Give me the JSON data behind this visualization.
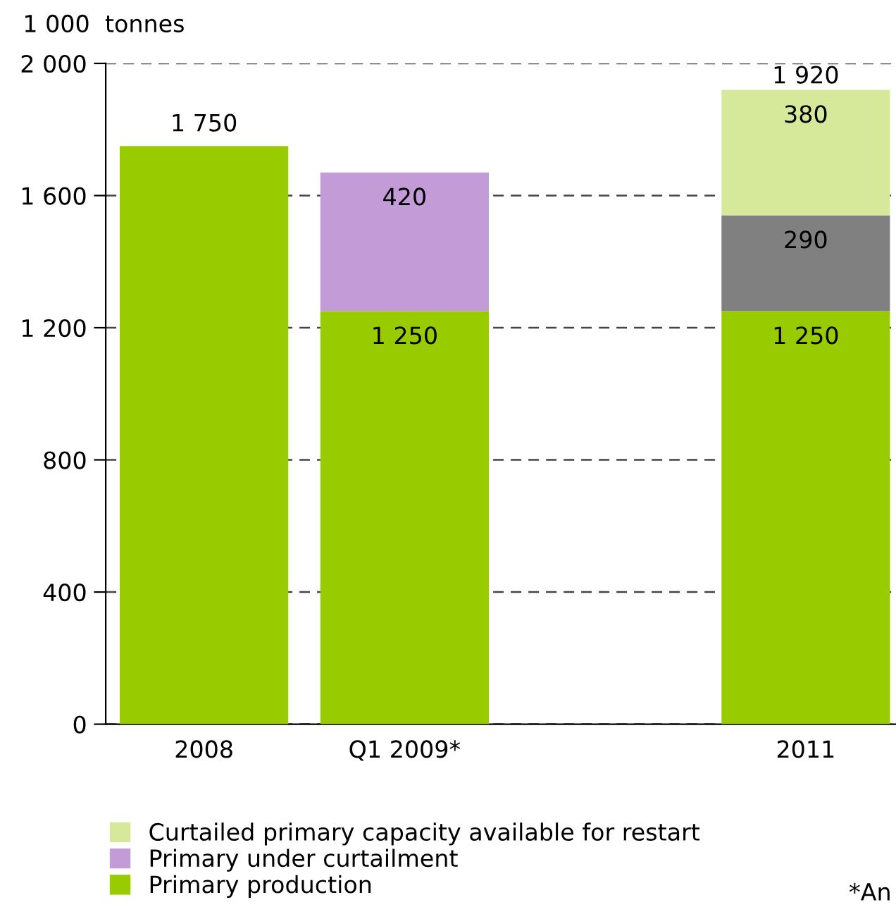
{
  "chart_data": {
    "type": "bar",
    "stacked": true,
    "ylabel": "1 000  tonnes",
    "categories": [
      "2008",
      "Q1 2009*",
      null,
      "2011"
    ],
    "series": [
      {
        "name": "Primary production",
        "color": "#99cc00",
        "values": [
          1750,
          1250,
          null,
          1250
        ],
        "value_labels": [
          "1 750",
          "1 250",
          null,
          "1 250"
        ]
      },
      {
        "name": "Primary under curtailment",
        "color": "#c39bd6",
        "values": [
          null,
          420,
          null,
          null
        ],
        "value_labels": [
          null,
          "420",
          null,
          null
        ]
      },
      {
        "color": "#808080",
        "values": [
          null,
          null,
          null,
          290
        ],
        "value_labels": [
          null,
          null,
          null,
          "290"
        ]
      },
      {
        "name": "Curtailed primary capacity available for restart",
        "color": "#d6e99b",
        "values": [
          null,
          null,
          null,
          380
        ],
        "value_labels": [
          null,
          null,
          null,
          "380"
        ]
      }
    ],
    "totals": [
      null,
      null,
      null,
      "1 920"
    ],
    "ylim": [
      0,
      2000
    ],
    "yticks": [
      0,
      {
        "value": 400,
        "label": "400"
      },
      {
        "value": 800,
        "label": "800"
      },
      {
        "value": 1200,
        "label": "1 200"
      },
      {
        "value": 1600,
        "label": "1 600"
      },
      {
        "value": 2000,
        "label": "2 000"
      }
    ],
    "grid": "y",
    "legend": "bottom",
    "annotations": [
      "*An"
    ]
  }
}
